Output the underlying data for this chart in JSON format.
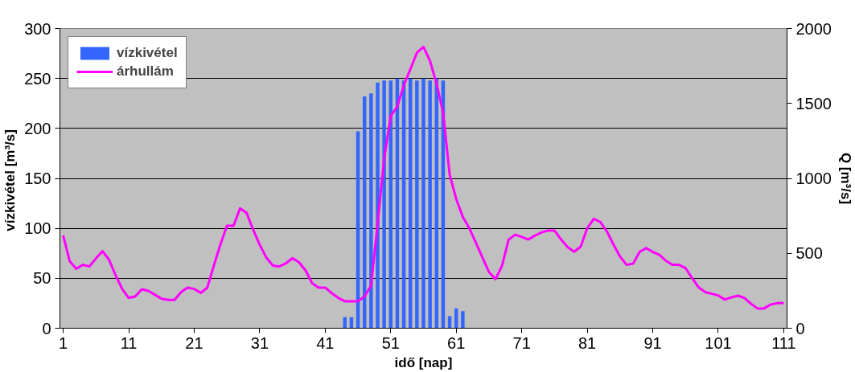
{
  "chart_data": {
    "type": "bar",
    "xlabel": "idő [nap]",
    "ylabel": "vízkivétel  [m³/s]",
    "y2label": "Q [m³/s]",
    "x": [
      1,
      2,
      3,
      4,
      5,
      6,
      7,
      8,
      9,
      10,
      11,
      12,
      13,
      14,
      15,
      16,
      17,
      18,
      19,
      20,
      21,
      22,
      23,
      24,
      25,
      26,
      27,
      28,
      29,
      30,
      31,
      32,
      33,
      34,
      35,
      36,
      37,
      38,
      39,
      40,
      41,
      42,
      43,
      44,
      45,
      46,
      47,
      48,
      49,
      50,
      51,
      52,
      53,
      54,
      55,
      56,
      57,
      58,
      59,
      60,
      61,
      62,
      63,
      64,
      65,
      66,
      67,
      68,
      69,
      70,
      71,
      72,
      73,
      74,
      75,
      76,
      77,
      78,
      79,
      80,
      81,
      82,
      83,
      84,
      85,
      86,
      87,
      88,
      89,
      90,
      91,
      92,
      93,
      94,
      95,
      96,
      97,
      98,
      99,
      100,
      101,
      102,
      103,
      104,
      105,
      106,
      107,
      108,
      109,
      110,
      111
    ],
    "xlim": [
      0.5,
      111.5
    ],
    "xticks": [
      1,
      11,
      21,
      31,
      41,
      51,
      61,
      71,
      81,
      91,
      101,
      111
    ],
    "ylim": [
      0,
      300
    ],
    "yticks": [
      0,
      50,
      100,
      150,
      200,
      250,
      300
    ],
    "y2lim": [
      0,
      2000
    ],
    "y2ticks": [
      0,
      500,
      1000,
      1500,
      2000
    ],
    "grid": "y",
    "legend": "top left",
    "series": [
      {
        "name": "vízkivétel",
        "color": "#3366ff",
        "values": [
          null,
          null,
          null,
          null,
          null,
          null,
          null,
          null,
          null,
          null,
          null,
          null,
          null,
          null,
          null,
          null,
          null,
          null,
          null,
          null,
          null,
          null,
          null,
          null,
          null,
          null,
          null,
          null,
          null,
          null,
          null,
          null,
          null,
          null,
          null,
          null,
          null,
          null,
          null,
          null,
          null,
          null,
          null,
          11,
          11,
          197,
          232,
          235,
          246,
          248,
          248,
          250,
          248,
          250,
          248,
          250,
          248,
          250,
          248,
          12,
          20,
          17,
          null,
          null,
          null,
          null,
          null,
          null,
          null,
          null,
          null,
          null,
          null,
          null,
          null,
          null,
          null,
          null,
          null,
          null,
          null,
          null,
          null,
          null,
          null,
          null,
          null,
          null,
          null,
          null,
          null,
          null,
          null,
          null,
          null,
          null,
          null,
          null,
          null,
          null,
          null,
          null,
          null,
          null,
          null,
          null,
          null,
          null,
          null,
          null,
          null
        ]
      },
      {
        "name": "árhullám",
        "type": "line",
        "axis": "y2",
        "color": "#ff00ff",
        "values": [
          618,
          446,
          397,
          423,
          412,
          466,
          514,
          457,
          353,
          262,
          202,
          212,
          260,
          249,
          223,
          197,
          189,
          189,
          241,
          271,
          262,
          236,
          271,
          418,
          559,
          683,
          683,
          800,
          769,
          657,
          557,
          472,
          418,
          412,
          433,
          468,
          440,
          386,
          300,
          271,
          271,
          234,
          202,
          180,
          180,
          180,
          212,
          284,
          700,
          1133,
          1415,
          1480,
          1621,
          1729,
          1838,
          1877,
          1783,
          1632,
          1437,
          1025,
          862,
          743,
          667,
          570,
          472,
          375,
          327,
          418,
          592,
          624,
          609,
          592,
          618,
          639,
          652,
          652,
          592,
          542,
          511,
          544,
          667,
          730,
          709,
          646,
          559,
          479,
          423,
          431,
          509,
          535,
          509,
          490,
          451,
          423,
          423,
          401,
          336,
          273,
          241,
          230,
          219,
          191,
          206,
          217,
          202,
          163,
          132,
          132,
          158,
          167,
          167
        ]
      }
    ]
  }
}
